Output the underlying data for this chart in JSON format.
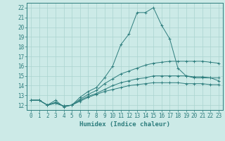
{
  "xlabel": "Humidex (Indice chaleur)",
  "background_color": "#cceae7",
  "line_color": "#2d7d7d",
  "grid_color": "#aad4d0",
  "xlim": [
    -0.5,
    23.5
  ],
  "ylim": [
    11.5,
    22.5
  ],
  "xticks": [
    0,
    1,
    2,
    3,
    4,
    5,
    6,
    7,
    8,
    9,
    10,
    11,
    12,
    13,
    14,
    15,
    16,
    17,
    18,
    19,
    20,
    21,
    22,
    23
  ],
  "yticks": [
    12,
    13,
    14,
    15,
    16,
    17,
    18,
    19,
    20,
    21,
    22
  ],
  "series": [
    {
      "x": [
        0,
        1,
        2,
        3,
        4,
        5,
        6,
        7,
        8,
        9,
        10,
        11,
        12,
        13,
        14,
        15,
        16,
        17,
        18,
        19,
        20,
        21,
        22,
        23
      ],
      "y": [
        12.5,
        12.5,
        12.0,
        12.5,
        11.8,
        12.0,
        12.8,
        13.4,
        13.8,
        14.8,
        16.0,
        18.2,
        19.3,
        21.5,
        21.5,
        22.0,
        20.2,
        18.8,
        15.8,
        15.0,
        14.8,
        14.8,
        14.8,
        14.5
      ]
    },
    {
      "x": [
        0,
        1,
        2,
        3,
        4,
        5,
        6,
        7,
        8,
        9,
        10,
        11,
        12,
        13,
        14,
        15,
        16,
        17,
        18,
        19,
        20,
        21,
        22,
        23
      ],
      "y": [
        12.5,
        12.5,
        12.0,
        12.3,
        11.9,
        12.0,
        12.6,
        13.1,
        13.5,
        14.2,
        14.7,
        15.2,
        15.5,
        15.8,
        16.1,
        16.3,
        16.4,
        16.5,
        16.5,
        16.5,
        16.5,
        16.5,
        16.4,
        16.3
      ]
    },
    {
      "x": [
        0,
        1,
        2,
        3,
        4,
        5,
        6,
        7,
        8,
        9,
        10,
        11,
        12,
        13,
        14,
        15,
        16,
        17,
        18,
        19,
        20,
        21,
        22,
        23
      ],
      "y": [
        12.5,
        12.5,
        12.0,
        12.2,
        11.9,
        12.0,
        12.5,
        12.9,
        13.2,
        13.6,
        14.0,
        14.3,
        14.5,
        14.7,
        14.8,
        15.0,
        15.0,
        15.0,
        15.0,
        15.0,
        14.9,
        14.9,
        14.8,
        14.8
      ]
    },
    {
      "x": [
        0,
        1,
        2,
        3,
        4,
        5,
        6,
        7,
        8,
        9,
        10,
        11,
        12,
        13,
        14,
        15,
        16,
        17,
        18,
        19,
        20,
        21,
        22,
        23
      ],
      "y": [
        12.5,
        12.5,
        12.0,
        12.2,
        11.9,
        12.0,
        12.4,
        12.8,
        13.1,
        13.4,
        13.6,
        13.8,
        14.0,
        14.1,
        14.2,
        14.3,
        14.3,
        14.3,
        14.3,
        14.2,
        14.2,
        14.2,
        14.1,
        14.1
      ]
    }
  ]
}
